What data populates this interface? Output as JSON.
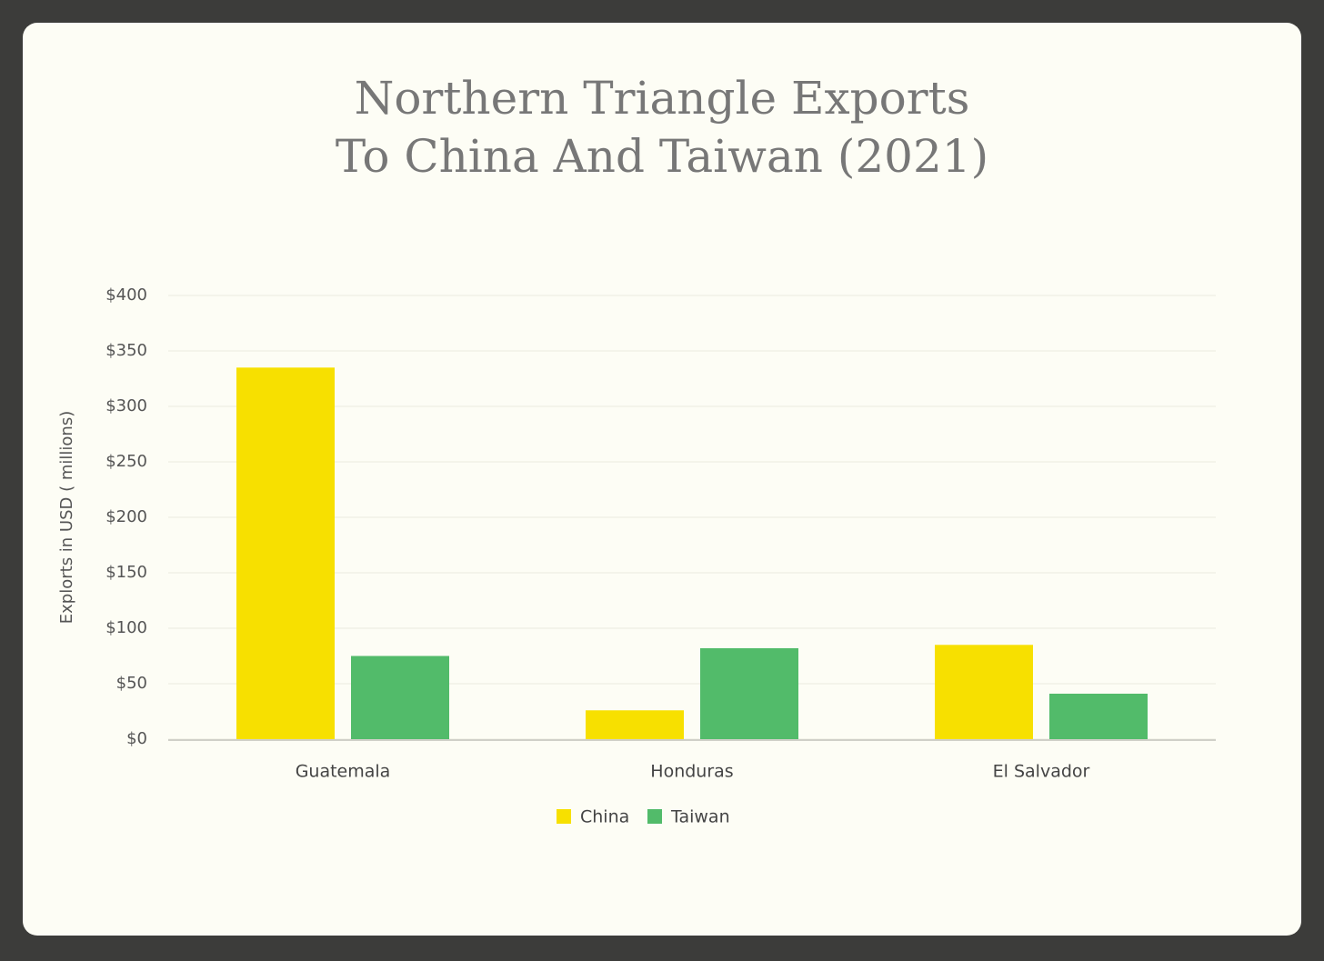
{
  "chart_data": {
    "type": "bar",
    "title": [
      "Northern Triangle Exports",
      "To China And Taiwan (2021)"
    ],
    "y_label": "Explorts in USD ( millions)",
    "categories": [
      "Guatemala",
      "Honduras",
      "El Salvador"
    ],
    "series": [
      {
        "name": "China",
        "color": "#f7e000",
        "values": [
          335,
          26,
          85
        ]
      },
      {
        "name": "Taiwan",
        "color": "#52bb6a",
        "values": [
          75,
          82,
          41
        ]
      }
    ],
    "ylim": [
      0,
      400
    ],
    "yticks": [
      {
        "value": 0,
        "label": "$0"
      },
      {
        "value": 50,
        "label": "$50"
      },
      {
        "value": 100,
        "label": "$100"
      },
      {
        "value": 150,
        "label": "$150"
      },
      {
        "value": 200,
        "label": "$200"
      },
      {
        "value": 250,
        "label": "$250"
      },
      {
        "value": 300,
        "label": "$300"
      },
      {
        "value": 350,
        "label": "$350"
      },
      {
        "value": 400,
        "label": "$400"
      }
    ],
    "grid": true,
    "legend": "bottom"
  }
}
